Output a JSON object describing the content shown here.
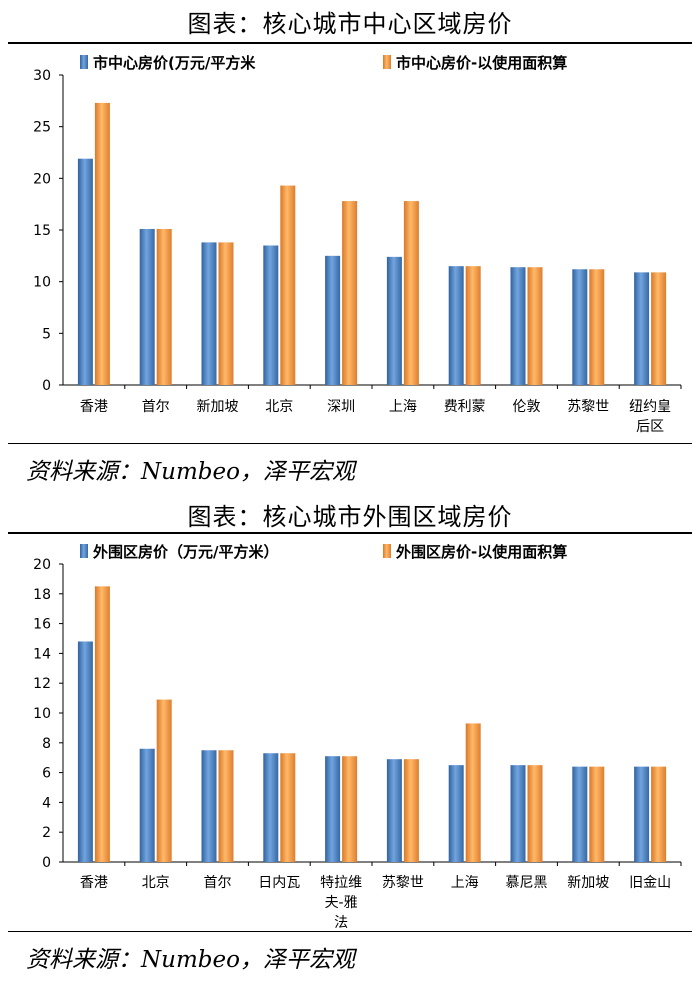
{
  "charts": [
    {
      "title": "图表：核心城市中心区域房价",
      "source": "资料来源：Numbeo，泽平宏观",
      "chart_data": {
        "type": "bar",
        "categories": [
          "香港",
          "首尔",
          "新加坡",
          "北京",
          "深圳",
          "上海",
          "费利蒙",
          "伦敦",
          "苏黎世",
          "纽约皇后区"
        ],
        "series": [
          {
            "name": "市中心房价(万元/平方米",
            "color": "#4f81bd",
            "values": [
              21.9,
              15.1,
              13.8,
              13.5,
              12.5,
              12.4,
              11.5,
              11.4,
              11.2,
              10.9
            ]
          },
          {
            "name": "市中心房价-以使用面积算",
            "color": "#f79646",
            "values": [
              27.3,
              15.1,
              13.8,
              19.3,
              17.8,
              17.8,
              11.5,
              11.4,
              11.2,
              10.9
            ]
          }
        ],
        "ylim": [
          0,
          30
        ],
        "yticks": [
          0,
          5,
          10,
          15,
          20,
          25,
          30
        ],
        "legend": "top",
        "grid": false
      }
    },
    {
      "title": "图表：核心城市外围区域房价",
      "source": "资料来源：Numbeo，泽平宏观",
      "chart_data": {
        "type": "bar",
        "categories": [
          "香港",
          "北京",
          "首尔",
          "日内瓦",
          "特拉维夫-雅法",
          "苏黎世",
          "上海",
          "慕尼黑",
          "新加坡",
          "旧金山"
        ],
        "series": [
          {
            "name": "外围区房价（万元/平方米）",
            "color": "#4f81bd",
            "values": [
              14.8,
              7.6,
              7.5,
              7.3,
              7.1,
              6.9,
              6.5,
              6.5,
              6.4,
              6.4
            ]
          },
          {
            "name": "外围区房价-以使用面积算",
            "color": "#f79646",
            "values": [
              18.5,
              10.9,
              7.5,
              7.3,
              7.1,
              6.9,
              9.3,
              6.5,
              6.4,
              6.4
            ]
          }
        ],
        "ylim": [
          0,
          20
        ],
        "yticks": [
          0,
          2,
          4,
          6,
          8,
          10,
          12,
          14,
          16,
          18,
          20
        ],
        "legend": "top",
        "grid": false
      }
    }
  ]
}
